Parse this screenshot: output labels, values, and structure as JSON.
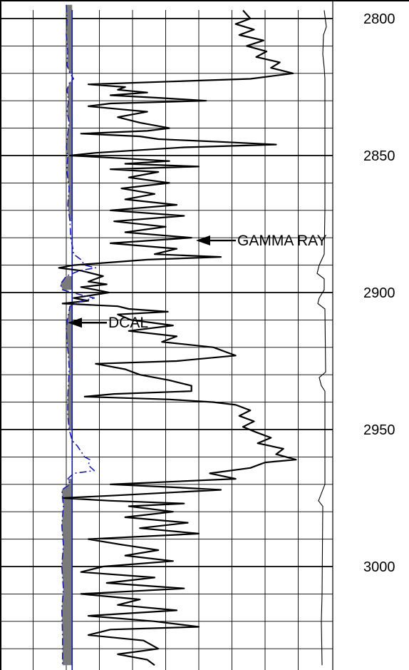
{
  "chart_data": {
    "type": "line",
    "title": "",
    "xlabel": "",
    "ylabel": "",
    "y_axis": {
      "reversed": true,
      "ylim": [
        2795,
        3036
      ],
      "tick_labels": [
        "2800",
        "2850",
        "2900",
        "2950",
        "3000"
      ],
      "ticks": [
        2800,
        2850,
        2900,
        2950,
        3000
      ],
      "minor_step": 10
    },
    "grid": true,
    "series": [
      {
        "name": "GAMMA RAY",
        "color": "#000000",
        "points": [
          [
            2797,
            330
          ],
          [
            2800,
            340
          ],
          [
            2802,
            320
          ],
          [
            2804,
            345
          ],
          [
            2806,
            325
          ],
          [
            2808,
            358
          ],
          [
            2810,
            335
          ],
          [
            2812,
            362
          ],
          [
            2814,
            348
          ],
          [
            2816,
            380
          ],
          [
            2818,
            368
          ],
          [
            2820,
            398
          ],
          [
            2822,
            340
          ],
          [
            2823,
            230
          ],
          [
            2824,
            120
          ],
          [
            2825,
            170
          ],
          [
            2826,
            160
          ],
          [
            2827,
            200
          ],
          [
            2828,
            150
          ],
          [
            2829,
            220
          ],
          [
            2830,
            280
          ],
          [
            2831,
            150
          ],
          [
            2832,
            120
          ],
          [
            2834,
            200
          ],
          [
            2836,
            160
          ],
          [
            2838,
            190
          ],
          [
            2840,
            230
          ],
          [
            2841,
            200
          ],
          [
            2842,
            110
          ],
          [
            2843,
            190
          ],
          [
            2844,
            215
          ],
          [
            2845,
            300
          ],
          [
            2846,
            375
          ],
          [
            2847,
            250
          ],
          [
            2849,
            130
          ],
          [
            2850,
            95
          ],
          [
            2851,
            165
          ],
          [
            2852,
            230
          ],
          [
            2853,
            170
          ],
          [
            2854,
            270
          ],
          [
            2855,
            150
          ],
          [
            2856,
            215
          ],
          [
            2858,
            175
          ],
          [
            2860,
            230
          ],
          [
            2862,
            165
          ],
          [
            2864,
            210
          ],
          [
            2866,
            170
          ],
          [
            2868,
            240
          ],
          [
            2870,
            150
          ],
          [
            2872,
            250
          ],
          [
            2874,
            155
          ],
          [
            2876,
            225
          ],
          [
            2878,
            170
          ],
          [
            2880,
            260
          ],
          [
            2882,
            150
          ],
          [
            2884,
            240
          ],
          [
            2886,
            210
          ],
          [
            2887,
            300
          ],
          [
            2888,
            200
          ],
          [
            2890,
            100
          ],
          [
            2891,
            80
          ],
          [
            2892,
            110
          ],
          [
            2894,
            140
          ],
          [
            2896,
            120
          ],
          [
            2897,
            145
          ],
          [
            2898,
            110
          ],
          [
            2899,
            130
          ],
          [
            2900,
            148
          ],
          [
            2902,
            100
          ],
          [
            2903,
            120
          ],
          [
            2904,
            85
          ],
          [
            2905,
            160
          ],
          [
            2906,
            175
          ],
          [
            2907,
            228
          ],
          [
            2908,
            160
          ],
          [
            2910,
            178
          ],
          [
            2912,
            235
          ],
          [
            2914,
            175
          ],
          [
            2916,
            240
          ],
          [
            2918,
            220
          ],
          [
            2920,
            290
          ],
          [
            2922,
            310
          ],
          [
            2923,
            320
          ],
          [
            2925,
            240
          ],
          [
            2926,
            130
          ],
          [
            2928,
            170
          ],
          [
            2930,
            190
          ],
          [
            2932,
            230
          ],
          [
            2934,
            260
          ],
          [
            2936,
            260
          ],
          [
            2937,
            155
          ],
          [
            2938,
            115
          ],
          [
            2939,
            230
          ],
          [
            2940,
            290
          ],
          [
            2941,
            320
          ],
          [
            2943,
            340
          ],
          [
            2945,
            325
          ],
          [
            2947,
            345
          ],
          [
            2949,
            330
          ],
          [
            2951,
            348
          ],
          [
            2953,
            368
          ],
          [
            2955,
            350
          ],
          [
            2957,
            385
          ],
          [
            2959,
            375
          ],
          [
            2961,
            402
          ],
          [
            2962,
            360
          ],
          [
            2964,
            340
          ],
          [
            2966,
            285
          ],
          [
            2968,
            320
          ],
          [
            2970,
            150
          ],
          [
            2971,
            230
          ],
          [
            2972,
            300
          ],
          [
            2974,
            160
          ],
          [
            2975,
            85
          ],
          [
            2976,
            150
          ],
          [
            2977,
            250
          ],
          [
            2978,
            175
          ],
          [
            2980,
            235
          ],
          [
            2982,
            170
          ],
          [
            2984,
            255
          ],
          [
            2986,
            190
          ],
          [
            2988,
            270
          ],
          [
            2990,
            120
          ],
          [
            2992,
            165
          ],
          [
            2994,
            215
          ],
          [
            2996,
            170
          ],
          [
            2998,
            235
          ],
          [
            3000,
            140
          ],
          [
            3002,
            110
          ],
          [
            3004,
            210
          ],
          [
            3006,
            145
          ],
          [
            3008,
            250
          ],
          [
            3010,
            110
          ],
          [
            3012,
            190
          ],
          [
            3014,
            160
          ],
          [
            3016,
            240
          ],
          [
            3018,
            120
          ],
          [
            3020,
            210
          ],
          [
            3022,
            270
          ],
          [
            3023,
            150
          ],
          [
            3025,
            120
          ],
          [
            3027,
            195
          ],
          [
            3030,
            215
          ],
          [
            3032,
            160
          ],
          [
            3034,
            200
          ],
          [
            3036,
            210
          ]
        ]
      },
      {
        "name": "DCAL",
        "color": "#1a1aaa",
        "points": [
          [
            2795,
            90
          ],
          [
            2800,
            91
          ],
          [
            2806,
            90
          ],
          [
            2812,
            92
          ],
          [
            2817,
            91
          ],
          [
            2820,
            95
          ],
          [
            2822,
            100
          ],
          [
            2823,
            95
          ],
          [
            2826,
            91
          ],
          [
            2830,
            93
          ],
          [
            2834,
            91
          ],
          [
            2838,
            94
          ],
          [
            2842,
            92
          ],
          [
            2847,
            90
          ],
          [
            2850,
            92
          ],
          [
            2856,
            91
          ],
          [
            2862,
            94
          ],
          [
            2868,
            92
          ],
          [
            2874,
            95
          ],
          [
            2880,
            96
          ],
          [
            2884,
            99
          ],
          [
            2886,
            100
          ],
          [
            2888,
            110
          ],
          [
            2890,
            115
          ],
          [
            2891,
            130
          ],
          [
            2892,
            108
          ],
          [
            2894,
            90
          ],
          [
            2897,
            82
          ],
          [
            2899,
            85
          ],
          [
            2901,
            112
          ],
          [
            2902,
            128
          ],
          [
            2903,
            112
          ],
          [
            2905,
            95
          ],
          [
            2909,
            92
          ],
          [
            2913,
            90
          ],
          [
            2918,
            91
          ],
          [
            2923,
            93
          ],
          [
            2928,
            94
          ],
          [
            2933,
            93
          ],
          [
            2938,
            92
          ],
          [
            2945,
            92
          ],
          [
            2950,
            94
          ],
          [
            2954,
            98
          ],
          [
            2956,
            105
          ],
          [
            2958,
            110
          ],
          [
            2960,
            115
          ],
          [
            2961,
            122
          ],
          [
            2963,
            120
          ],
          [
            2965,
            128
          ],
          [
            2966,
            100
          ],
          [
            2968,
            92
          ],
          [
            2970,
            95
          ],
          [
            2972,
            84
          ],
          [
            2978,
            86
          ],
          [
            2985,
            84
          ],
          [
            2992,
            86
          ],
          [
            3000,
            84
          ],
          [
            3008,
            86
          ],
          [
            3016,
            84
          ],
          [
            3025,
            85
          ],
          [
            3036,
            85
          ]
        ]
      }
    ],
    "shading_color": "#7a7a7a",
    "bit_line_color": "#1111cc",
    "bit_size": 98,
    "x_range": [
      0,
      450
    ],
    "annotations": [
      {
        "text": "GAMMA RAY",
        "depth": 2881,
        "arrow_tip_x": 275
      },
      {
        "text": "DCAL",
        "depth": 2911,
        "arrow_tip_x": 95
      }
    ]
  }
}
